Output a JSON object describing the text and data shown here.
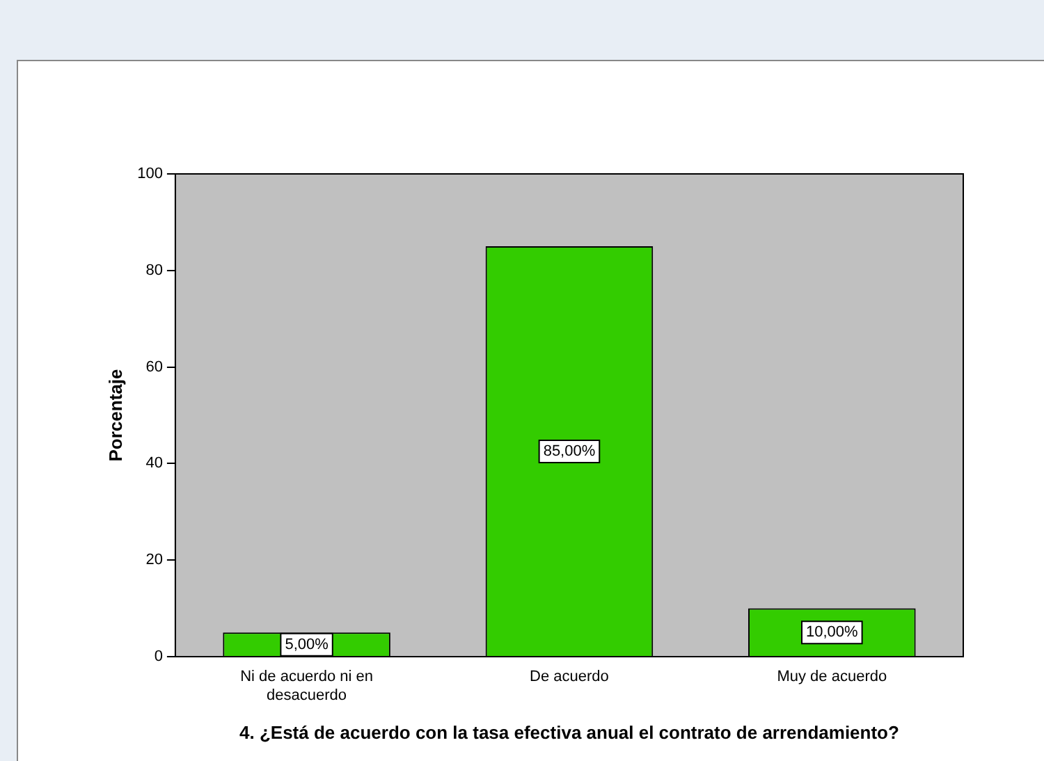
{
  "chart_data": {
    "type": "bar",
    "categories": [
      "Ni de acuerdo ni en desacuerdo",
      "De acuerdo",
      "Muy de acuerdo"
    ],
    "values": [
      5,
      85,
      10
    ],
    "value_labels": [
      "5,00%",
      "85,00%",
      "10,00%"
    ],
    "color": "#33cc00",
    "xlabel": "4. ¿Está de acuerdo con la tasa efectiva anual el contrato de arrendamiento?",
    "ylabel": "Porcentaje",
    "ylim": [
      0,
      100
    ],
    "yticks": [
      0,
      20,
      40,
      60,
      80,
      100
    ],
    "grid": false,
    "legend": false
  }
}
